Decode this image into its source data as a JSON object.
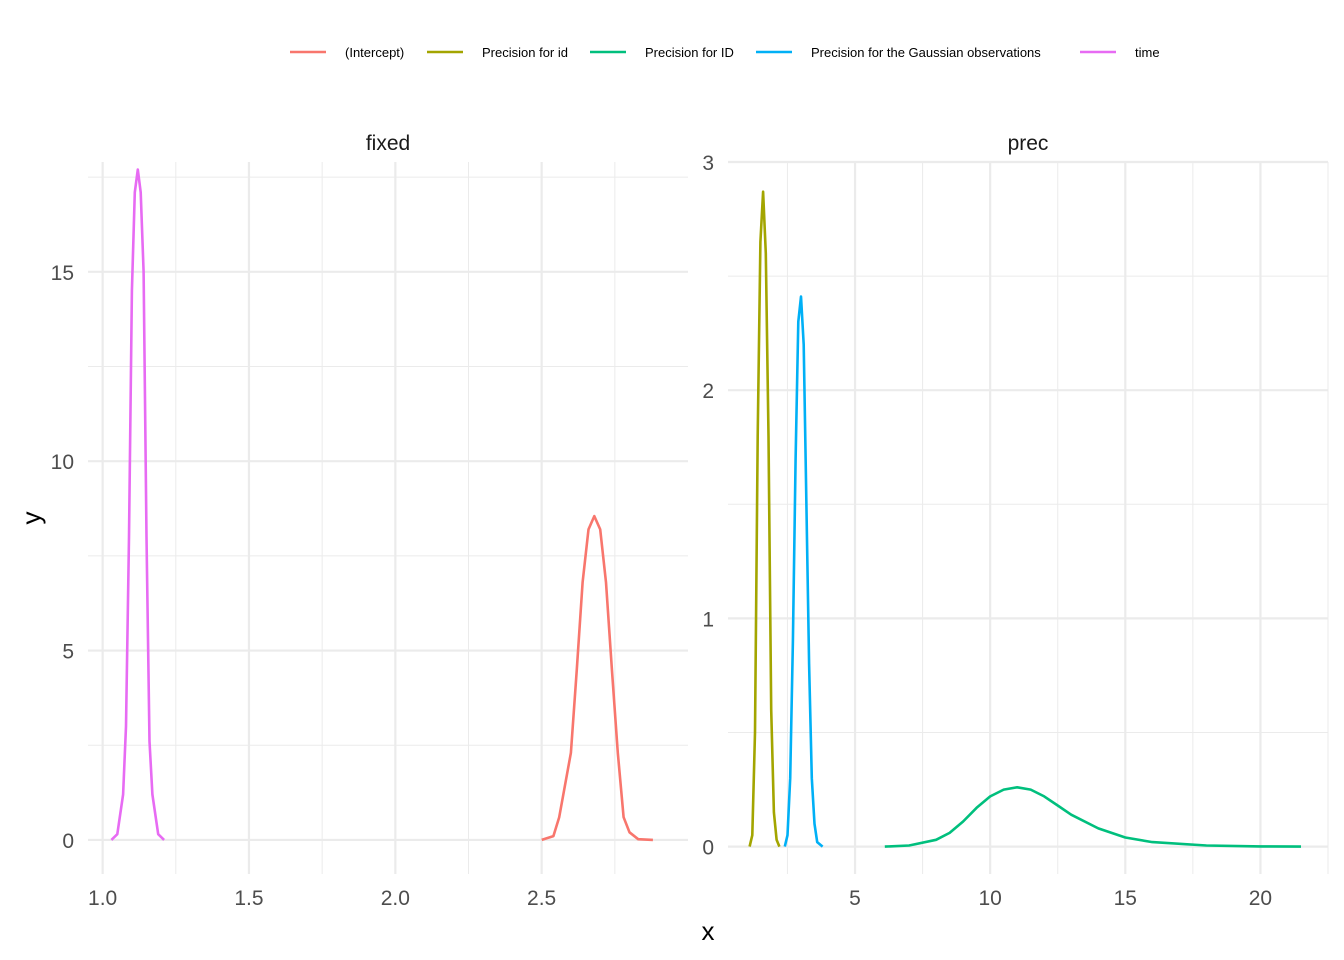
{
  "chart_data": {
    "type": "line",
    "xlabel": "x",
    "ylabel": "y",
    "legend_position": "top",
    "grid": true,
    "legend": [
      {
        "name": "(Intercept)",
        "color": "#F8766D"
      },
      {
        "name": "Precision for id",
        "color": "#A3A500"
      },
      {
        "name": "Precision for ID",
        "color": "#00BF7D"
      },
      {
        "name": "Precision for the Gaussian observations",
        "color": "#00B0F6"
      },
      {
        "name": "time",
        "color": "#E76BF3"
      }
    ],
    "panels": [
      {
        "title": "fixed",
        "xlim": [
          0.95,
          3.0
        ],
        "ylim": [
          -0.9,
          17.9
        ],
        "x_ticks": [
          1.0,
          1.5,
          2.0,
          2.5
        ],
        "x_tick_labels": [
          "1.0",
          "1.5",
          "2.0",
          "2.5"
        ],
        "y_ticks": [
          0,
          5,
          10,
          15
        ],
        "y_tick_labels": [
          "0",
          "5",
          "10",
          "15"
        ],
        "series": [
          {
            "name": "time",
            "color": "#E76BF3",
            "x": [
              1.03,
              1.05,
              1.07,
              1.08,
              1.09,
              1.1,
              1.11,
              1.12,
              1.13,
              1.14,
              1.15,
              1.16,
              1.17,
              1.19,
              1.21
            ],
            "y": [
              0.0,
              0.15,
              1.2,
              3.0,
              8.0,
              14.5,
              17.1,
              17.7,
              17.1,
              15.0,
              8.0,
              2.6,
              1.2,
              0.15,
              0.0
            ]
          },
          {
            "name": "(Intercept)",
            "color": "#F8766D",
            "x": [
              2.5,
              2.54,
              2.56,
              2.6,
              2.62,
              2.64,
              2.66,
              2.68,
              2.7,
              2.72,
              2.74,
              2.76,
              2.78,
              2.8,
              2.83,
              2.88
            ],
            "y": [
              0.0,
              0.1,
              0.6,
              2.3,
              4.5,
              6.8,
              8.2,
              8.55,
              8.2,
              6.8,
              4.5,
              2.3,
              0.6,
              0.2,
              0.02,
              0.0
            ]
          }
        ]
      },
      {
        "title": "prec",
        "xlim": [
          0.3,
          22.5
        ],
        "ylim": [
          -0.12,
          3.0
        ],
        "x_ticks": [
          5,
          10,
          15,
          20
        ],
        "x_tick_labels": [
          "5",
          "10",
          "15",
          "20"
        ],
        "y_ticks": [
          0,
          1,
          2,
          3
        ],
        "y_tick_labels": [
          "0",
          "1",
          "2",
          "3"
        ],
        "series": [
          {
            "name": "Precision for id",
            "color": "#A3A500",
            "x": [
              1.1,
              1.2,
              1.3,
              1.4,
              1.5,
              1.6,
              1.7,
              1.8,
              1.9,
              2.0,
              2.1,
              2.2
            ],
            "y": [
              0.0,
              0.05,
              0.5,
              1.8,
              2.65,
              2.87,
              2.6,
              1.8,
              0.6,
              0.15,
              0.03,
              0.0
            ]
          },
          {
            "name": "Precision for the Gaussian observations",
            "color": "#00B0F6",
            "x": [
              2.4,
              2.5,
              2.6,
              2.7,
              2.8,
              2.9,
              3.0,
              3.1,
              3.2,
              3.3,
              3.4,
              3.5,
              3.6,
              3.8
            ],
            "y": [
              0.0,
              0.05,
              0.3,
              0.9,
              1.7,
              2.3,
              2.41,
              2.2,
              1.5,
              0.8,
              0.3,
              0.1,
              0.02,
              0.0
            ]
          },
          {
            "name": "Precision for ID",
            "color": "#00BF7D",
            "x": [
              6.1,
              7,
              8,
              8.5,
              9,
              9.5,
              10,
              10.5,
              11,
              11.5,
              12,
              12.5,
              13,
              14,
              15,
              16,
              18,
              20,
              21.5
            ],
            "y": [
              0.0,
              0.005,
              0.03,
              0.06,
              0.11,
              0.17,
              0.22,
              0.25,
              0.26,
              0.25,
              0.22,
              0.18,
              0.14,
              0.08,
              0.04,
              0.02,
              0.005,
              0.001,
              0.0
            ]
          }
        ]
      }
    ]
  }
}
